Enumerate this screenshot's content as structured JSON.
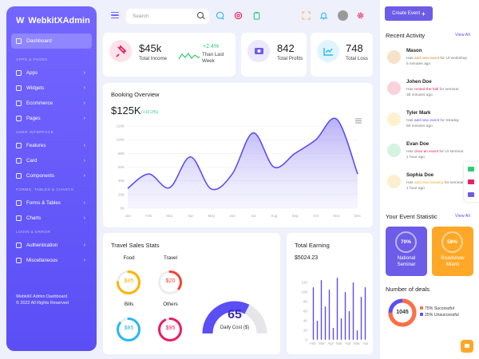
{
  "brand": {
    "name": "WebkitXAdmin",
    "logo": "W"
  },
  "sidebar": {
    "active": "Dashboard",
    "sections": [
      {
        "label": "APPS & PAGES",
        "items": [
          "Apps",
          "Widgets",
          "Ecommerce",
          "Pages"
        ]
      },
      {
        "label": "USER INTERFACE",
        "items": [
          "Features",
          "Card",
          "Components"
        ]
      },
      {
        "label": "FORMS, TABLES & CHARTS",
        "items": [
          "Forms & Tables",
          "Charts"
        ]
      },
      {
        "label": "LOGIN & ERROR",
        "items": [
          "Authentication",
          "Miscellaneous"
        ]
      }
    ],
    "footer_line1": "WebkitX Admin Dashboard",
    "footer_line2": "© 2022 All Rights Reserved"
  },
  "search": {
    "placeholder": "Search"
  },
  "stats": {
    "income": {
      "value": "$45k",
      "label": "Total Income",
      "change": "+2.4%",
      "change_label": "Than Last Week"
    },
    "profits": {
      "value": "842",
      "label": "Total Profits"
    },
    "loss": {
      "value": "748",
      "label": "Total Loss"
    }
  },
  "booking": {
    "title": "Booking Overview",
    "amount": "$125K",
    "change": "(+10.2%)"
  },
  "chart_data": [
    {
      "type": "area",
      "title": "Booking Overview",
      "categories": [
        "Jan",
        "Feb",
        "Mar",
        "Apr",
        "May",
        "Jun",
        "Jul",
        "Aug",
        "Sep",
        "Oct",
        "Nov",
        "Dec"
      ],
      "values": [
        29,
        50,
        30,
        75,
        28,
        50,
        110,
        60,
        80,
        100,
        130,
        50
      ],
      "y_ticks": [
        "0K",
        "20K",
        "40K",
        "60K",
        "80K",
        "100K",
        "120K"
      ],
      "ylim": [
        0,
        120
      ],
      "grid": true
    },
    {
      "type": "bar",
      "title": "Total Earning",
      "categories": [
        "Feb",
        "Mar",
        "Apr",
        "Mar",
        "Apr",
        "Mar",
        "Apr",
        "Mar",
        "Apr",
        "Mar",
        "Apr",
        "Mar",
        "Apr",
        "Mar"
      ],
      "x_ticks": [
        "Feb",
        "Mar",
        "Apr",
        "Mar",
        "Apr",
        "Mar",
        "Apr"
      ],
      "values": [
        110,
        40,
        125,
        70,
        105,
        25,
        130,
        45,
        100,
        60,
        120,
        20,
        90,
        110
      ],
      "y_ticks": [
        "0",
        "20",
        "40",
        "60",
        "80",
        "100",
        "120"
      ],
      "ylim": [
        0,
        140
      ],
      "grid": false
    }
  ],
  "travel": {
    "title": "Travel Sales Stats",
    "items": [
      {
        "label": "Food",
        "value": "$45",
        "color": "#ffb300",
        "pct": 0.75
      },
      {
        "label": "Travel",
        "value": "$20",
        "color": "#f44336",
        "pct": 0.35
      },
      {
        "label": "Bills",
        "value": "$85",
        "color": "#29b6f6",
        "pct": 0.85
      },
      {
        "label": "Others",
        "value": "$95",
        "color": "#e91e63",
        "pct": 0.92
      }
    ],
    "gauge_value": "65",
    "gauge_label": "Daily Cost ($)",
    "gauge_pct": 0.65
  },
  "earning": {
    "title": "Total Earning",
    "amount": "$5024.23"
  },
  "right": {
    "create_event": "Create Event",
    "recent_title": "Recent Activity",
    "view_all": "View All",
    "activities": [
      {
        "name": "Mason",
        "pre": "Has ",
        "action": "add new event",
        "post": " for UI workshop",
        "time": "5 minutes ago",
        "action_color": "#e67e22",
        "av": "#f6e3c7"
      },
      {
        "name": "Johen Doe",
        "pre": "Has ",
        "action": "rented the hall",
        "post": " for seminar",
        "time": "35 minutes ago",
        "action_color": "#e91e63",
        "av": "#fbd2dc"
      },
      {
        "name": "Tyler Mark",
        "pre": "Has ",
        "action": "add new event",
        "post": " for Straday",
        "time": "50 minutes ago",
        "action_color": "#5b4ef5",
        "av": "#fdf1cf"
      },
      {
        "name": "Evan Doe",
        "pre": "Has ",
        "action": "clear an event",
        "post": " for UI seminar",
        "time": "1 hour ago",
        "action_color": "#e91e63",
        "av": "#d5f3e1"
      },
      {
        "name": "Sophia Doe",
        "pre": "Has ",
        "action": "add new meeting",
        "post": " for seminar",
        "time": "1 hour ago",
        "action_color": "#ffa726",
        "av": "#fbefd0"
      }
    ],
    "event_title": "Your Event Statistic",
    "events": [
      {
        "pct": "70%",
        "label1": "National",
        "label2": "Seminar",
        "color": "#6c5ce7"
      },
      {
        "pct": "58%",
        "label1": "Roadshow",
        "label2": "Miami",
        "color": "#ffa726"
      }
    ],
    "deals_title": "Number of deals",
    "deals_value": "1045",
    "deals_success": "75% Successful",
    "deals_unsuccess": "25% Unsuccessful",
    "colors": {
      "success": "#ff7043",
      "unsuccess": "#5b4ef5"
    }
  }
}
